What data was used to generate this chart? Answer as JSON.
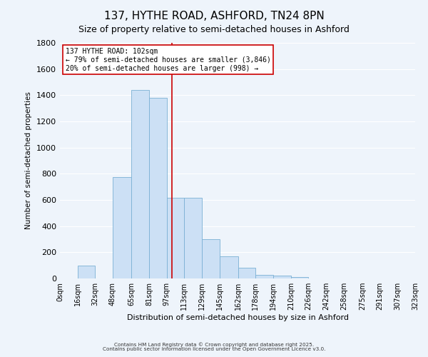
{
  "title": "137, HYTHE ROAD, ASHFORD, TN24 8PN",
  "subtitle": "Size of property relative to semi-detached houses in Ashford",
  "xlabel": "Distribution of semi-detached houses by size in Ashford",
  "ylabel": "Number of semi-detached properties",
  "bar_edges": [
    0,
    16,
    32,
    48,
    65,
    81,
    97,
    113,
    129,
    145,
    162,
    178,
    194,
    210,
    226,
    242,
    258,
    275,
    291,
    307,
    323
  ],
  "bar_heights": [
    0,
    100,
    0,
    775,
    1440,
    1380,
    615,
    615,
    300,
    170,
    80,
    30,
    20,
    10,
    0,
    0,
    0,
    0,
    0,
    0
  ],
  "bar_color": "#cce0f5",
  "bar_edgecolor": "#7ab0d4",
  "vline_x": 102,
  "vline_color": "#cc0000",
  "annotation_title": "137 HYTHE ROAD: 102sqm",
  "annotation_line1": "← 79% of semi-detached houses are smaller (3,846)",
  "annotation_line2": "20% of semi-detached houses are larger (998) →",
  "annotation_box_facecolor": "#ffffff",
  "annotation_box_edgecolor": "#cc0000",
  "ylim": [
    0,
    1800
  ],
  "yticks": [
    0,
    200,
    400,
    600,
    800,
    1000,
    1200,
    1400,
    1600,
    1800
  ],
  "tick_labels": [
    "0sqm",
    "16sqm",
    "32sqm",
    "48sqm",
    "65sqm",
    "81sqm",
    "97sqm",
    "113sqm",
    "129sqm",
    "145sqm",
    "162sqm",
    "178sqm",
    "194sqm",
    "210sqm",
    "226sqm",
    "242sqm",
    "258sqm",
    "275sqm",
    "291sqm",
    "307sqm",
    "323sqm"
  ],
  "footer1": "Contains HM Land Registry data © Crown copyright and database right 2025.",
  "footer2": "Contains public sector information licensed under the Open Government Licence v3.0.",
  "bg_color": "#eef4fb",
  "grid_color": "#ffffff",
  "title_fontsize": 11,
  "subtitle_fontsize": 9,
  "ylabel_fontsize": 7.5,
  "xlabel_fontsize": 8
}
